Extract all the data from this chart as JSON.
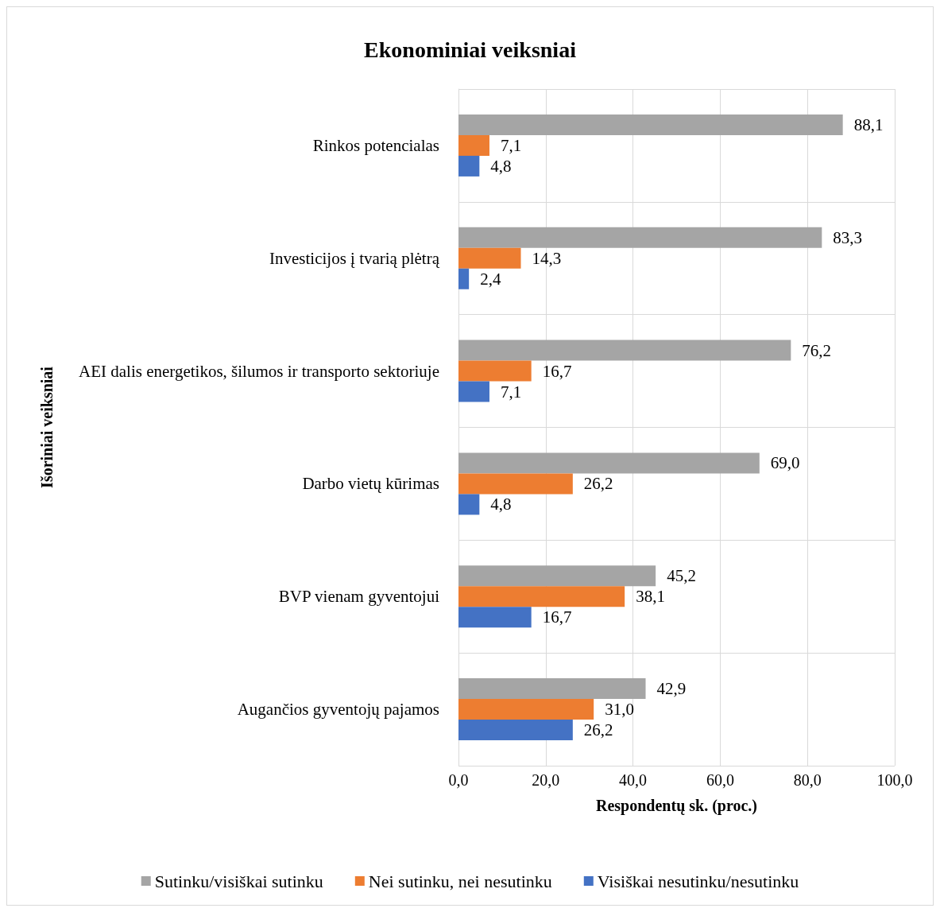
{
  "chart_data": {
    "type": "bar",
    "orientation": "horizontal",
    "title": "Ekonominiai veiksniai",
    "xlabel": "Respondentų sk. (proc.)",
    "ylabel": "Išoriniai veiksniai",
    "categories": [
      "Rinkos potencialas",
      "Investicijos į tvarią plėtrą",
      "AEI dalis energetikos, šilumos ir transporto sektoriuje",
      "Darbo vietų kūrimas",
      "BVP vienam gyventojui",
      "Augančios gyventojų pajamos"
    ],
    "series": [
      {
        "name": "Sutinku/visiškai sutinku",
        "color": "#a5a5a5",
        "values": [
          88.1,
          83.3,
          76.2,
          69.0,
          45.2,
          42.9
        ],
        "value_labels": [
          "88,1",
          "83,3",
          "76,2",
          "69,0",
          "45,2",
          "42,9"
        ]
      },
      {
        "name": "Nei sutinku, nei nesutinku",
        "color": "#ed7d31",
        "values": [
          7.1,
          14.3,
          16.7,
          26.2,
          38.1,
          31.0
        ],
        "value_labels": [
          "7,1",
          "14,3",
          "16,7",
          "26,2",
          "38,1",
          "31,0"
        ]
      },
      {
        "name": "Visiškai nesutinku/nesutinku",
        "color": "#4472c4",
        "values": [
          4.8,
          2.4,
          7.1,
          4.8,
          16.7,
          26.2
        ],
        "value_labels": [
          "4,8",
          "2,4",
          "7,1",
          "4,8",
          "16,7",
          "26,2"
        ]
      }
    ],
    "xlim": [
      0,
      100
    ],
    "xticks": [
      {
        "value": 0,
        "label": "0,0"
      },
      {
        "value": 20,
        "label": "20,0"
      },
      {
        "value": 40,
        "label": "40,0"
      },
      {
        "value": 60,
        "label": "60,0"
      },
      {
        "value": 80,
        "label": "80,0"
      },
      {
        "value": 100,
        "label": "100,0"
      }
    ],
    "grid": true,
    "legend": "bottom"
  }
}
